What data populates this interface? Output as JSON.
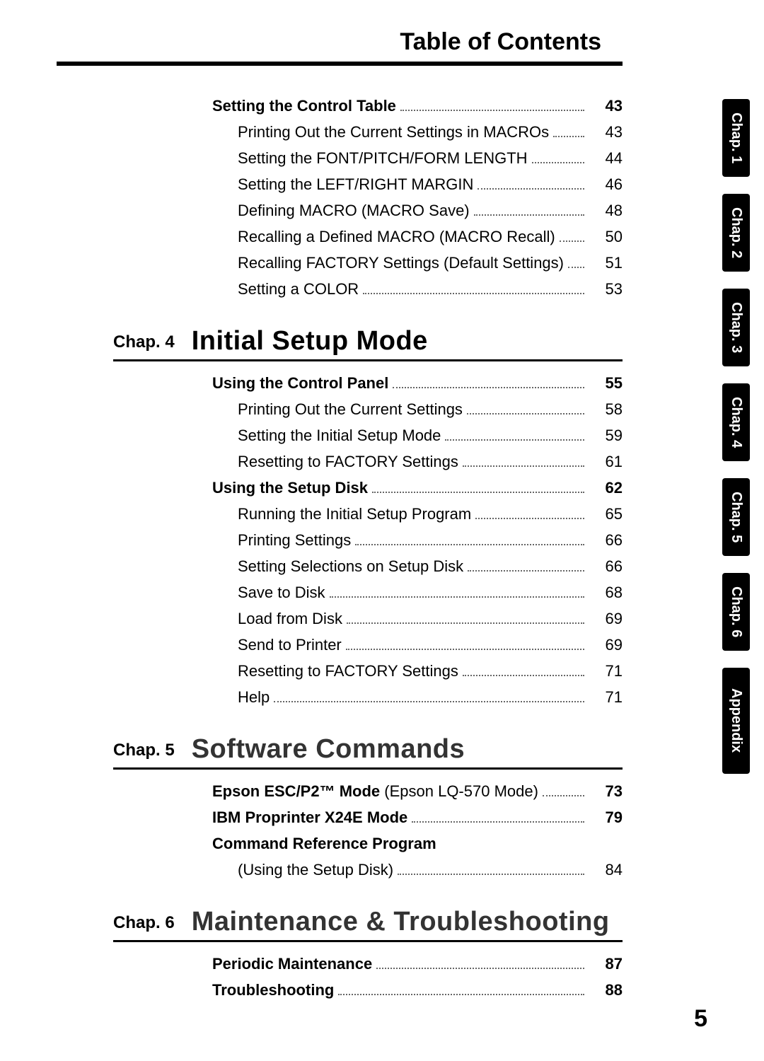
{
  "header": {
    "title": "Table of Contents"
  },
  "page_number": "5",
  "side_tabs": [
    {
      "label": "Chap. 1"
    },
    {
      "label": "Chap. 2"
    },
    {
      "label": "Chap. 3"
    },
    {
      "label": "Chap. 4"
    },
    {
      "label": "Chap. 5"
    },
    {
      "label": "Chap. 6"
    },
    {
      "label": "Appendix"
    }
  ],
  "pre_section": {
    "entries": [
      {
        "label": "Setting the Control Table",
        "page": "43",
        "bold": true
      },
      {
        "label": "Printing Out the Current Settings in MACROs",
        "page": "43",
        "sub": true
      },
      {
        "label": "Setting the FONT/PITCH/FORM LENGTH",
        "page": "44",
        "sub": true
      },
      {
        "label": "Setting the LEFT/RIGHT MARGIN",
        "page": "46",
        "sub": true
      },
      {
        "label": "Defining MACRO (MACRO Save)",
        "page": "48",
        "sub": true
      },
      {
        "label": "Recalling a Defined MACRO (MACRO Recall)",
        "page": "50",
        "sub": true
      },
      {
        "label": "Recalling FACTORY Settings (Default Settings)",
        "page": "51",
        "sub": true
      },
      {
        "label": "Setting a COLOR",
        "page": "53",
        "sub": true
      }
    ]
  },
  "chapters": [
    {
      "label": "Chap. 4",
      "title": "Initial Setup Mode",
      "title_style": "strong",
      "entries": [
        {
          "label": "Using the Control Panel",
          "page": "55",
          "bold": true
        },
        {
          "label": "Printing Out the Current Settings",
          "page": "58",
          "sub": true
        },
        {
          "label": "Setting the Initial Setup Mode",
          "page": "59",
          "sub": true
        },
        {
          "label": "Resetting to FACTORY Settings",
          "page": "61",
          "sub": true
        },
        {
          "label": "Using the Setup Disk",
          "page": "62",
          "bold": true
        },
        {
          "label": "Running the Initial Setup Program",
          "page": "65",
          "sub": true
        },
        {
          "label": "Printing Settings",
          "page": "66",
          "sub": true
        },
        {
          "label": "Setting Selections on Setup Disk",
          "page": "66",
          "sub": true
        },
        {
          "label": "Save to Disk",
          "page": "68",
          "sub": true
        },
        {
          "label": "Load from Disk",
          "page": "69",
          "sub": true
        },
        {
          "label": "Send to Printer",
          "page": "69",
          "sub": true
        },
        {
          "label": "Resetting to FACTORY Settings",
          "page": "71",
          "sub": true
        },
        {
          "label": "Help",
          "page": "71",
          "sub": true
        }
      ]
    },
    {
      "label": "Chap. 5",
      "title": "Software Commands",
      "title_style": "weak",
      "entries": [
        {
          "label": "Epson ESC/P2™ Mode",
          "label_light": " (Epson LQ-570 Mode)",
          "page": "73",
          "bold": true
        },
        {
          "label": "IBM Proprinter X24E Mode",
          "page": "79",
          "bold": true
        },
        {
          "label": "Command Reference Program",
          "page": "",
          "bold": true,
          "nodots": true
        },
        {
          "label": "(Using the Setup Disk)",
          "page": "84",
          "sub": true
        }
      ]
    },
    {
      "label": "Chap. 6",
      "title": "Maintenance & Troubleshooting",
      "title_style": "weak",
      "entries": [
        {
          "label": "Periodic Maintenance",
          "page": "87",
          "bold": true
        },
        {
          "label": "Troubleshooting",
          "page": "88",
          "bold": true
        }
      ]
    }
  ]
}
